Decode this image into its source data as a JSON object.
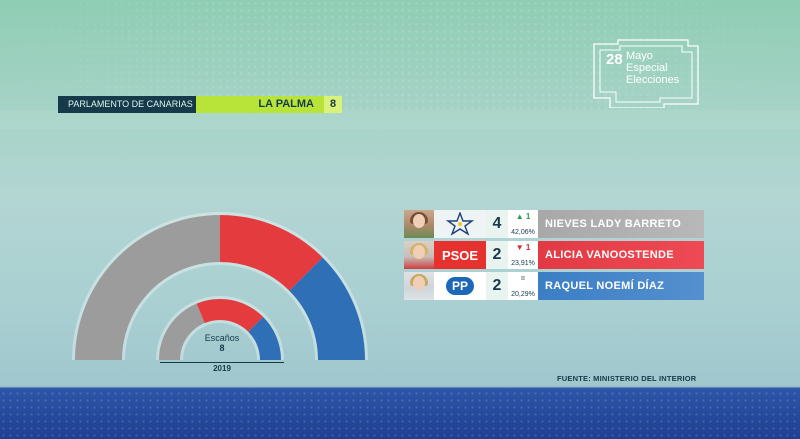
{
  "header": {
    "parliament": "PARLAMENTO DE CANARIAS",
    "island": "LA PALMA",
    "seats_total": "8"
  },
  "logo": {
    "day": "28",
    "lines": [
      "Mayo",
      "Especial",
      "Elecciones"
    ]
  },
  "colors": {
    "cc": "#9c9c9c",
    "psoe": "#e43b3f",
    "pp": "#2f6fb5",
    "accent": "#b8e43a"
  },
  "chart_data": {
    "type": "pie",
    "style": "semicircle-parliament",
    "current": {
      "series": [
        {
          "name": "CC",
          "seats": 4
        },
        {
          "name": "PSOE",
          "seats": 2
        },
        {
          "name": "PP",
          "seats": 2
        }
      ]
    },
    "previous": {
      "label": "2019",
      "caption": "Escaños",
      "total": "8",
      "series": [
        {
          "name": "CC",
          "seats": 3
        },
        {
          "name": "PSOE",
          "seats": 3
        },
        {
          "name": "PP",
          "seats": 2
        }
      ]
    }
  },
  "results": [
    {
      "party": "CC",
      "seats": "4",
      "change": "▲ 1",
      "pct": "42,06%",
      "candidate": "NIEVES LADY BARRETO",
      "logo_text": ""
    },
    {
      "party": "PSOE",
      "seats": "2",
      "change": "▼ 1",
      "pct": "23,91%",
      "candidate": "ALICIA VANOOSTENDE",
      "logo_text": "PSOE"
    },
    {
      "party": "PP",
      "seats": "2",
      "change": "=",
      "pct": "20,29%",
      "candidate": "RAQUEL NOEMÍ DÍAZ",
      "logo_text": "PP"
    }
  ],
  "source": "FUENTE: MINISTERIO DEL INTERIOR"
}
